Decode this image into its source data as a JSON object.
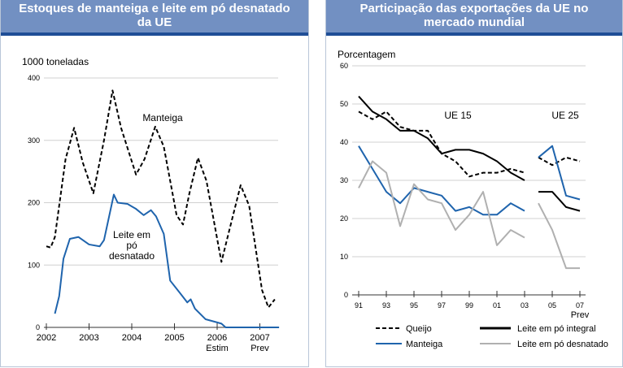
{
  "chart_data": [
    {
      "type": "line",
      "title": "Estoques de manteiga e leite em pó desnatado da UE",
      "ylabel": "1000 toneladas",
      "ylim": [
        0,
        400
      ],
      "yticks": [
        0,
        100,
        200,
        300,
        400
      ],
      "grid": true,
      "xticks": [
        {
          "label": "2002",
          "x": 2002
        },
        {
          "label": "2003",
          "x": 2003
        },
        {
          "label": "2004",
          "x": 2004
        },
        {
          "label": "2005",
          "x": 2005
        },
        {
          "label": "2006",
          "sub": "Estim",
          "x": 2006
        },
        {
          "label": "2007",
          "sub": "Prev",
          "x": 2007
        }
      ],
      "xlim": [
        2002,
        2007.45
      ],
      "series": [
        {
          "name": "Manteiga",
          "style": "dashed",
          "color": "#000000",
          "x": [
            2002,
            2002.1,
            2002.2,
            2002.45,
            2002.65,
            2002.85,
            2003.1,
            2003.35,
            2003.55,
            2003.75,
            2004.1,
            2004.3,
            2004.55,
            2004.75,
            2005.05,
            2005.2,
            2005.35,
            2005.55,
            2005.75,
            2006.1,
            2006.3,
            2006.55,
            2006.75,
            2007.05,
            2007.2,
            2007.35
          ],
          "y": [
            130,
            128,
            145,
            270,
            320,
            265,
            215,
            300,
            380,
            320,
            245,
            270,
            322,
            290,
            180,
            165,
            215,
            272,
            235,
            105,
            160,
            228,
            195,
            60,
            32,
            45
          ]
        },
        {
          "name": "Leite em pó desnatado",
          "style": "solid",
          "color": "#1f64ad",
          "x": [
            2002.2,
            2002.3,
            2002.4,
            2002.55,
            2002.75,
            2003.0,
            2003.25,
            2003.35,
            2003.58,
            2003.67,
            2003.9,
            2004.1,
            2004.28,
            2004.45,
            2004.57,
            2004.75,
            2004.9,
            2005.13,
            2005.3,
            2005.38,
            2005.48,
            2005.73,
            2006.0,
            2006.1,
            2006.2,
            2007.45
          ],
          "y": [
            22,
            50,
            110,
            142,
            145,
            133,
            130,
            140,
            213,
            200,
            198,
            190,
            180,
            188,
            178,
            150,
            75,
            55,
            40,
            45,
            30,
            13,
            8,
            6,
            0,
            0
          ]
        }
      ],
      "annotations": [
        "Manteiga",
        "Leite em",
        "pó",
        "desnatado"
      ]
    },
    {
      "type": "line",
      "title": "Participação das exportações da UE no mercado mundial",
      "ylabel": "Porcentagem",
      "ylim": [
        0,
        60
      ],
      "yticks": [
        0,
        10,
        20,
        30,
        40,
        50,
        60
      ],
      "grid": true,
      "xticks": [
        "91",
        "93",
        "95",
        "97",
        "99",
        "01",
        "03",
        "05",
        "07"
      ],
      "xsub": "Prev",
      "groups": [
        "UE 15",
        "UE 25"
      ],
      "series": [
        {
          "name": "Queijo",
          "style": "dashed",
          "color": "#000000",
          "ue15": [
            48,
            46,
            48,
            44,
            43,
            43,
            37,
            35,
            31,
            32,
            32,
            33,
            32
          ],
          "ue25": [
            36,
            34,
            36,
            35
          ]
        },
        {
          "name": "Leite em pó integral",
          "style": "solid",
          "color": "#000000",
          "ue15": [
            52,
            48,
            46,
            43,
            43,
            41,
            37,
            38,
            38,
            37,
            35,
            32,
            30
          ],
          "ue25": [
            27,
            27,
            23,
            22
          ]
        },
        {
          "name": "Manteiga",
          "style": "solid",
          "color": "#1f64ad",
          "ue15": [
            39,
            33,
            27,
            24,
            28,
            27,
            26,
            22,
            23,
            21,
            21,
            24,
            22
          ],
          "ue25": [
            36,
            39,
            26,
            25
          ]
        },
        {
          "name": "Leite em pó desnatado",
          "style": "solid",
          "color": "#b0b0b0",
          "ue15": [
            28,
            35,
            32,
            18,
            29,
            25,
            24,
            17,
            21,
            27,
            13,
            17,
            15
          ],
          "ue25": [
            24,
            17,
            7,
            7
          ]
        }
      ]
    }
  ]
}
